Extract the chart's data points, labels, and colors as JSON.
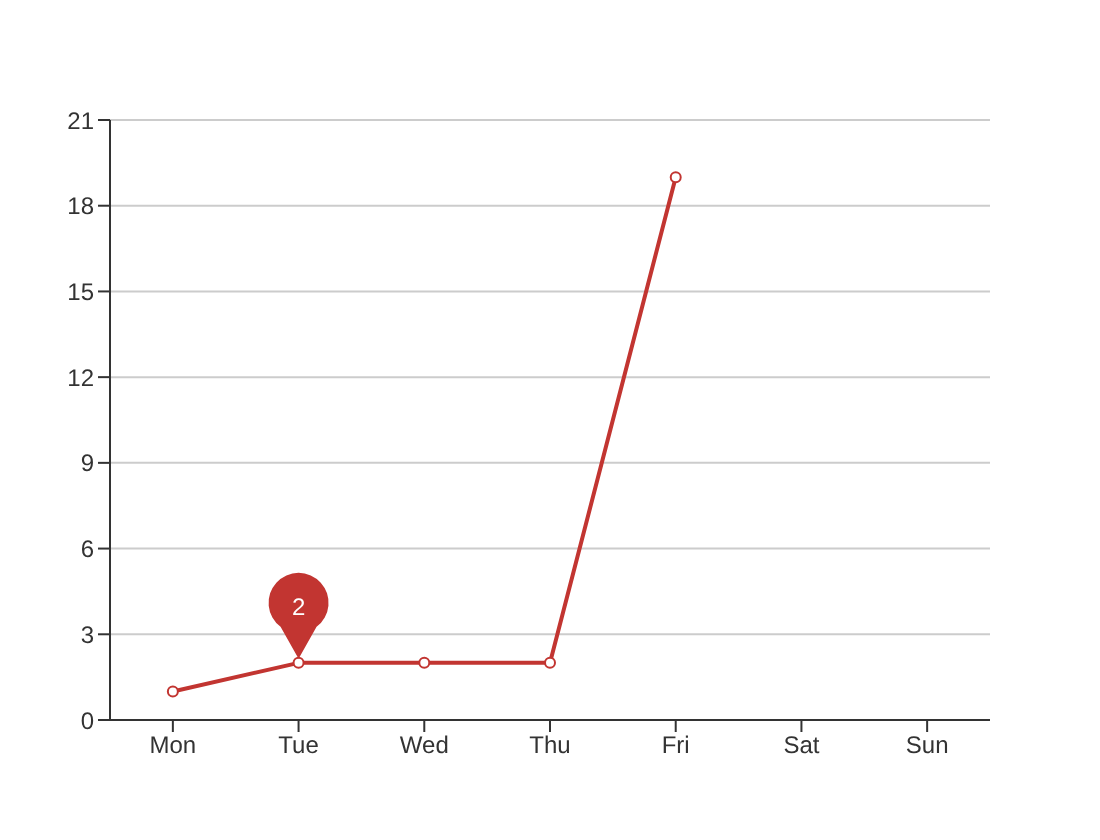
{
  "chart_data": {
    "type": "line",
    "categories": [
      "Mon",
      "Tue",
      "Wed",
      "Thu",
      "Fri",
      "Sat",
      "Sun"
    ],
    "series": [
      {
        "color": "#c23531",
        "values": [
          1,
          2,
          2,
          2,
          19,
          null,
          null
        ]
      }
    ],
    "ylim": [
      0,
      21
    ],
    "yticks": [
      0,
      3,
      6,
      9,
      12,
      15,
      18,
      21
    ],
    "grid": "y",
    "marker": "circle",
    "line_style": "solid",
    "legend": false,
    "annotations": [
      {
        "text": "2",
        "x": "Tue",
        "y": 2
      }
    ]
  }
}
